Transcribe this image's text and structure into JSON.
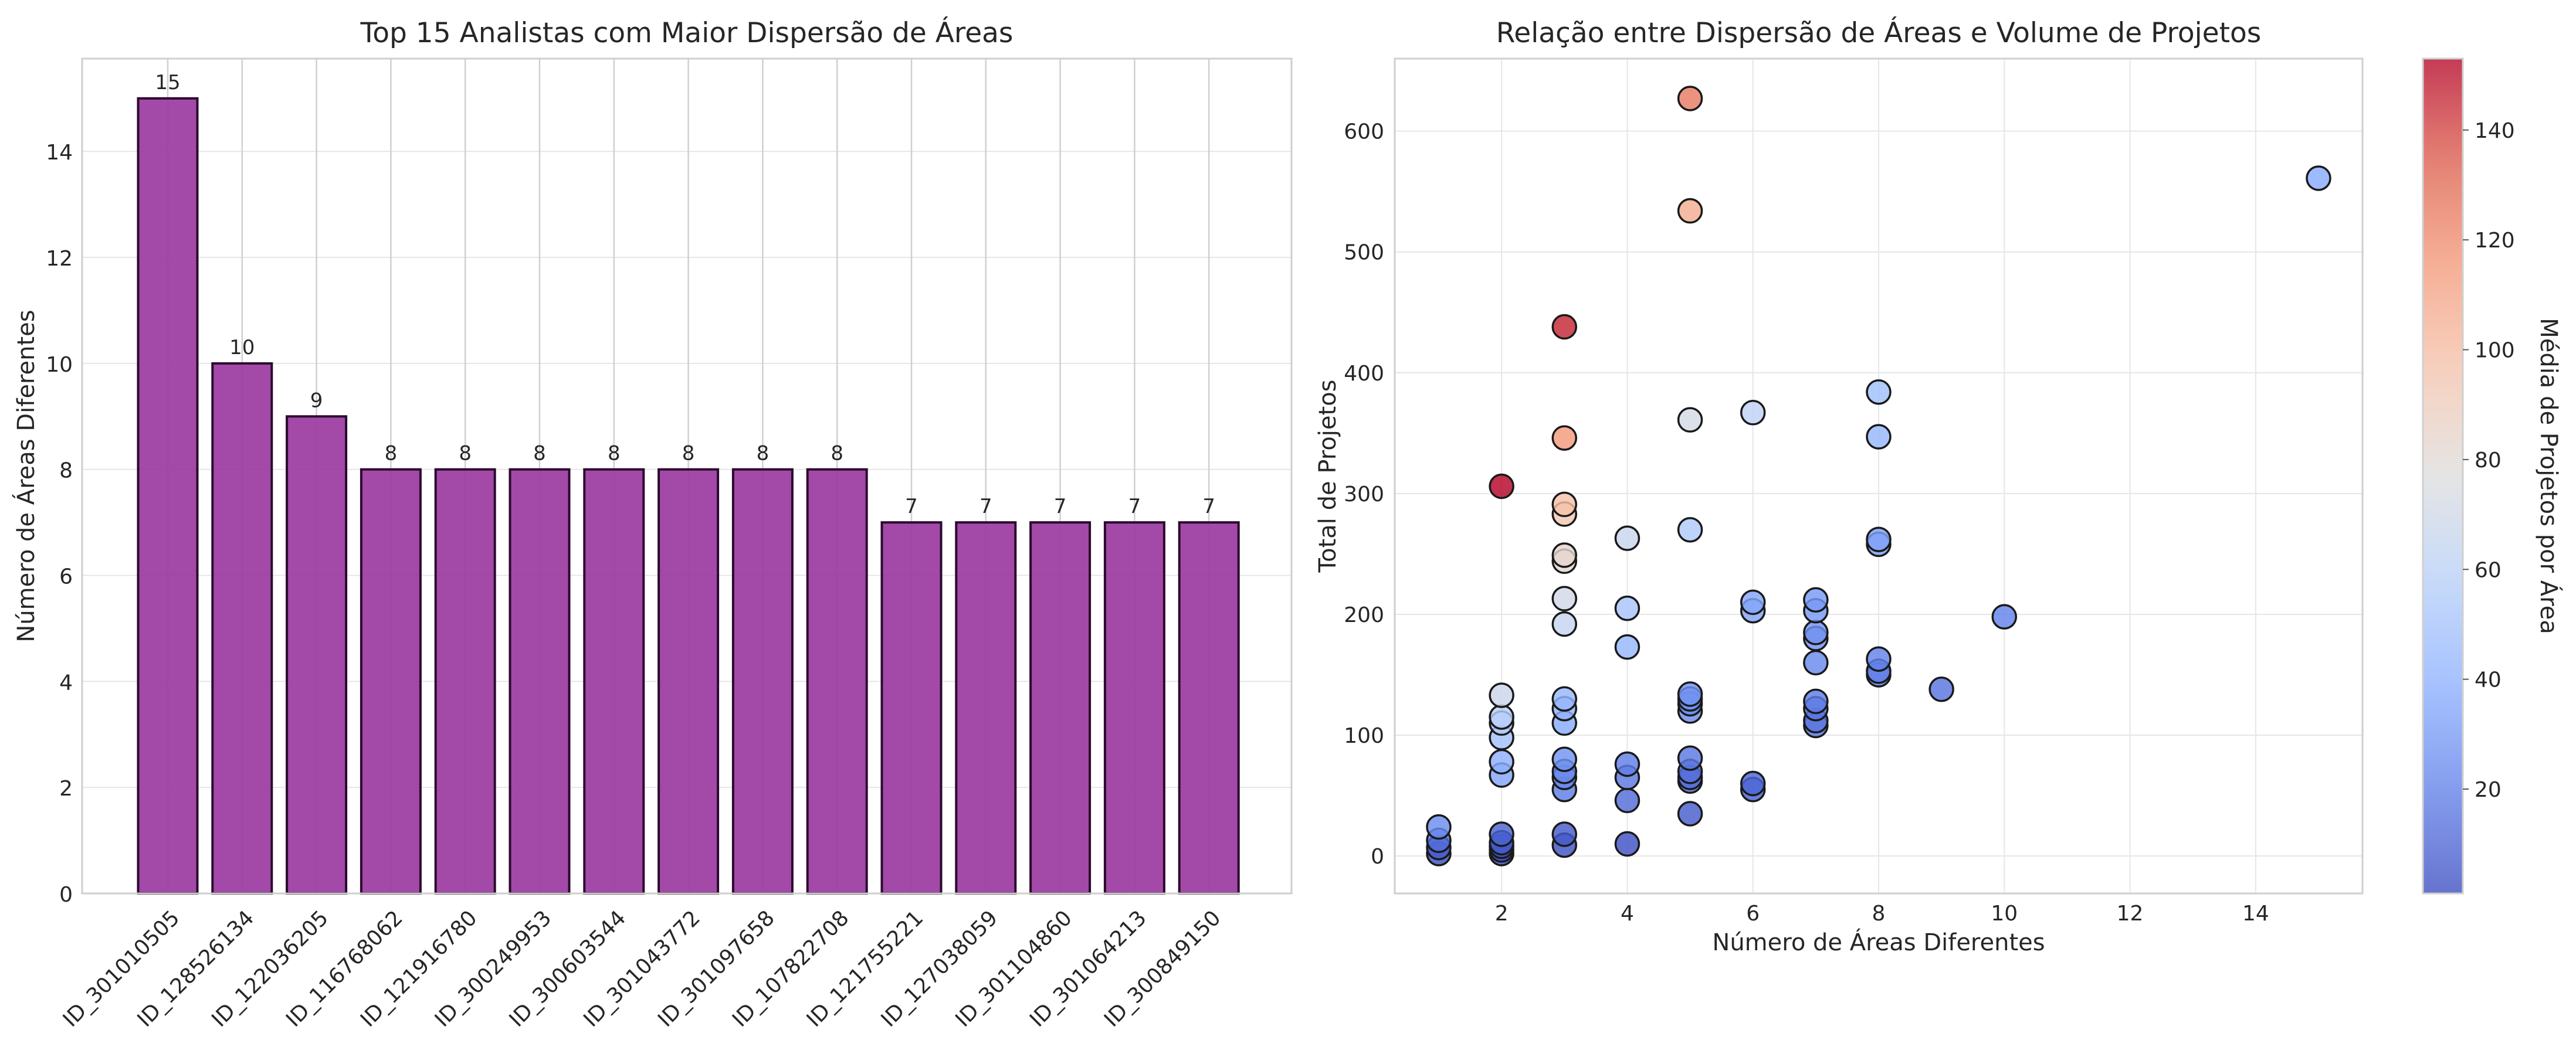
{
  "chart_data": [
    {
      "type": "bar",
      "title": "Top 15 Analistas com Maior Dispersão de Áreas",
      "xlabel": "",
      "ylabel": "Número de Áreas Diferentes",
      "categories": [
        "ID_301010505",
        "ID_128526134",
        "ID_122036205",
        "ID_116768062",
        "ID_121916780",
        "ID_300249953",
        "ID_300603544",
        "ID_301043772",
        "ID_301097658",
        "ID_107822708",
        "ID_121755221",
        "ID_127038059",
        "ID_301104860",
        "ID_301064213",
        "ID_300849150"
      ],
      "values": [
        15,
        10,
        9,
        8,
        8,
        8,
        8,
        8,
        8,
        8,
        7,
        7,
        7,
        7,
        7
      ],
      "data_labels": [
        "15",
        "10",
        "9",
        "8",
        "8",
        "8",
        "8",
        "8",
        "8",
        "8",
        "7",
        "7",
        "7",
        "7",
        "7"
      ],
      "ylim": [
        0,
        15.75
      ],
      "yticks": [
        0,
        2,
        4,
        6,
        8,
        10,
        12,
        14
      ],
      "grid": true,
      "colors": {
        "bar": "#9b3aa1",
        "edge": "#2b0a2e"
      }
    },
    {
      "type": "scatter",
      "title": "Relação entre Dispersão de Áreas e Volume de Projetos",
      "xlabel": "Número de Áreas Diferentes",
      "ylabel": "Total de Projetos",
      "xlim": [
        0.3,
        15.7
      ],
      "ylim": [
        -31,
        660
      ],
      "xticks": [
        2,
        4,
        6,
        8,
        10,
        12,
        14
      ],
      "yticks": [
        0,
        100,
        200,
        300,
        400,
        500,
        600
      ],
      "grid": true,
      "colorbar": {
        "label": "Média de Projetos por Área",
        "colormap": "coolwarm",
        "range": [
          1,
          153
        ],
        "ticks": [
          20,
          40,
          60,
          80,
          100,
          120,
          140
        ]
      },
      "points": [
        {
          "x": 1,
          "y": 2,
          "c": 2
        },
        {
          "x": 1,
          "y": 7,
          "c": 7
        },
        {
          "x": 1,
          "y": 13,
          "c": 13
        },
        {
          "x": 1,
          "y": 24,
          "c": 24
        },
        {
          "x": 2,
          "y": 2,
          "c": 1
        },
        {
          "x": 2,
          "y": 5,
          "c": 3
        },
        {
          "x": 2,
          "y": 8,
          "c": 4
        },
        {
          "x": 2,
          "y": 11,
          "c": 6
        },
        {
          "x": 2,
          "y": 18,
          "c": 9
        },
        {
          "x": 2,
          "y": 67,
          "c": 34
        },
        {
          "x": 2,
          "y": 78,
          "c": 39
        },
        {
          "x": 2,
          "y": 98,
          "c": 49
        },
        {
          "x": 2,
          "y": 110,
          "c": 55
        },
        {
          "x": 2,
          "y": 115,
          "c": 58
        },
        {
          "x": 2,
          "y": 133,
          "c": 67
        },
        {
          "x": 2,
          "y": 306,
          "c": 153
        },
        {
          "x": 3,
          "y": 9,
          "c": 3
        },
        {
          "x": 3,
          "y": 18,
          "c": 6
        },
        {
          "x": 3,
          "y": 55,
          "c": 18
        },
        {
          "x": 3,
          "y": 65,
          "c": 22
        },
        {
          "x": 3,
          "y": 70,
          "c": 23
        },
        {
          "x": 3,
          "y": 80,
          "c": 27
        },
        {
          "x": 3,
          "y": 110,
          "c": 37
        },
        {
          "x": 3,
          "y": 122,
          "c": 41
        },
        {
          "x": 3,
          "y": 130,
          "c": 43
        },
        {
          "x": 3,
          "y": 192,
          "c": 64
        },
        {
          "x": 3,
          "y": 213,
          "c": 71
        },
        {
          "x": 3,
          "y": 244,
          "c": 81
        },
        {
          "x": 3,
          "y": 249,
          "c": 83
        },
        {
          "x": 3,
          "y": 283,
          "c": 94
        },
        {
          "x": 3,
          "y": 291,
          "c": 97
        },
        {
          "x": 3,
          "y": 346,
          "c": 115
        },
        {
          "x": 3,
          "y": 438,
          "c": 146
        },
        {
          "x": 4,
          "y": 10,
          "c": 3
        },
        {
          "x": 4,
          "y": 46,
          "c": 12
        },
        {
          "x": 4,
          "y": 65,
          "c": 16
        },
        {
          "x": 4,
          "y": 76,
          "c": 19
        },
        {
          "x": 4,
          "y": 173,
          "c": 43
        },
        {
          "x": 4,
          "y": 205,
          "c": 51
        },
        {
          "x": 4,
          "y": 263,
          "c": 66
        },
        {
          "x": 5,
          "y": 35,
          "c": 7
        },
        {
          "x": 5,
          "y": 62,
          "c": 12
        },
        {
          "x": 5,
          "y": 65,
          "c": 13
        },
        {
          "x": 5,
          "y": 70,
          "c": 14
        },
        {
          "x": 5,
          "y": 81,
          "c": 16
        },
        {
          "x": 5,
          "y": 120,
          "c": 24
        },
        {
          "x": 5,
          "y": 126,
          "c": 25
        },
        {
          "x": 5,
          "y": 130,
          "c": 26
        },
        {
          "x": 5,
          "y": 134,
          "c": 27
        },
        {
          "x": 5,
          "y": 270,
          "c": 54
        },
        {
          "x": 5,
          "y": 361,
          "c": 72
        },
        {
          "x": 5,
          "y": 534,
          "c": 107
        },
        {
          "x": 5,
          "y": 627,
          "c": 125
        },
        {
          "x": 6,
          "y": 55,
          "c": 9
        },
        {
          "x": 6,
          "y": 60,
          "c": 10
        },
        {
          "x": 6,
          "y": 203,
          "c": 34
        },
        {
          "x": 6,
          "y": 210,
          "c": 35
        },
        {
          "x": 6,
          "y": 367,
          "c": 61
        },
        {
          "x": 7,
          "y": 108,
          "c": 15
        },
        {
          "x": 7,
          "y": 112,
          "c": 16
        },
        {
          "x": 7,
          "y": 122,
          "c": 17
        },
        {
          "x": 7,
          "y": 128,
          "c": 18
        },
        {
          "x": 7,
          "y": 160,
          "c": 23
        },
        {
          "x": 7,
          "y": 180,
          "c": 26
        },
        {
          "x": 7,
          "y": 185,
          "c": 26
        },
        {
          "x": 7,
          "y": 203,
          "c": 29
        },
        {
          "x": 7,
          "y": 212,
          "c": 30
        },
        {
          "x": 8,
          "y": 150,
          "c": 19
        },
        {
          "x": 8,
          "y": 153,
          "c": 19
        },
        {
          "x": 8,
          "y": 163,
          "c": 20
        },
        {
          "x": 8,
          "y": 258,
          "c": 32
        },
        {
          "x": 8,
          "y": 262,
          "c": 33
        },
        {
          "x": 8,
          "y": 347,
          "c": 43
        },
        {
          "x": 8,
          "y": 384,
          "c": 48
        },
        {
          "x": 9,
          "y": 138,
          "c": 15
        },
        {
          "x": 10,
          "y": 198,
          "c": 20
        },
        {
          "x": 15,
          "y": 561,
          "c": 37
        }
      ]
    }
  ]
}
